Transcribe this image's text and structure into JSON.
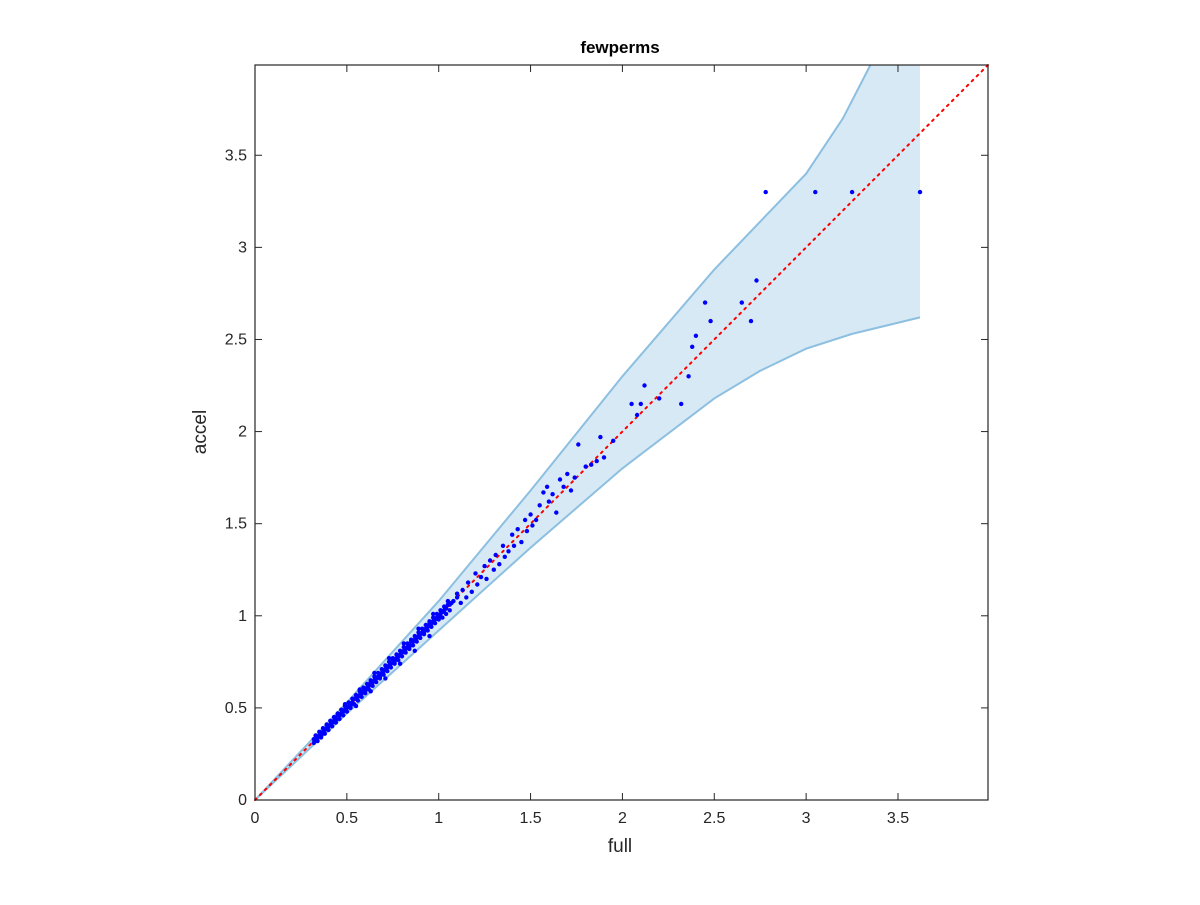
{
  "chart_data": {
    "type": "scatter",
    "title": "fewperms",
    "xlabel": "full",
    "ylabel": "accel",
    "xlim": [
      0,
      3.99
    ],
    "ylim": [
      0,
      3.99
    ],
    "grid": false,
    "legend": "none",
    "x_ticks": [
      0,
      0.5,
      1,
      1.5,
      2,
      2.5,
      3,
      3.5
    ],
    "y_ticks": [
      0,
      0.5,
      1,
      1.5,
      2,
      2.5,
      3,
      3.5
    ],
    "x_tick_labels": [
      "0",
      "0.5",
      "1",
      "1.5",
      "2",
      "2.5",
      "3",
      "3.5"
    ],
    "y_tick_labels": [
      "0",
      "0.5",
      "1",
      "1.5",
      "2",
      "2.5",
      "3",
      "3.5"
    ],
    "colors": {
      "points": "#0000ff",
      "diagonal": "#ff0000",
      "band_fill": "#d6e9f5",
      "band_edge": "#8cbfe0",
      "axes": "#262626"
    },
    "reference_line": {
      "style": "dotted",
      "from": [
        0,
        0
      ],
      "to": [
        3.99,
        3.99
      ]
    },
    "band": {
      "upper": [
        [
          0,
          0
        ],
        [
          0.5,
          0.53
        ],
        [
          1,
          1.08
        ],
        [
          1.5,
          1.68
        ],
        [
          2,
          2.3
        ],
        [
          2.5,
          2.88
        ],
        [
          3,
          3.4
        ],
        [
          3.2,
          3.7
        ],
        [
          3.35,
          3.99
        ],
        [
          3.62,
          3.99
        ]
      ],
      "lower": [
        [
          0,
          0
        ],
        [
          0.5,
          0.47
        ],
        [
          1,
          0.92
        ],
        [
          1.5,
          1.37
        ],
        [
          2,
          1.8
        ],
        [
          2.5,
          2.18
        ],
        [
          2.75,
          2.33
        ],
        [
          3,
          2.45
        ],
        [
          3.25,
          2.53
        ],
        [
          3.62,
          2.62
        ]
      ]
    },
    "series": [
      {
        "points": [
          [
            0.32,
            0.31
          ],
          [
            0.33,
            0.33
          ],
          [
            0.34,
            0.34
          ],
          [
            0.35,
            0.35
          ],
          [
            0.36,
            0.36
          ],
          [
            0.37,
            0.37
          ],
          [
            0.38,
            0.38
          ],
          [
            0.39,
            0.39
          ],
          [
            0.4,
            0.4
          ],
          [
            0.41,
            0.41
          ],
          [
            0.42,
            0.42
          ],
          [
            0.43,
            0.43
          ],
          [
            0.44,
            0.44
          ],
          [
            0.45,
            0.46
          ],
          [
            0.46,
            0.46
          ],
          [
            0.47,
            0.47
          ],
          [
            0.48,
            0.48
          ],
          [
            0.49,
            0.49
          ],
          [
            0.5,
            0.5
          ],
          [
            0.51,
            0.51
          ],
          [
            0.52,
            0.52
          ],
          [
            0.53,
            0.53
          ],
          [
            0.54,
            0.55
          ],
          [
            0.55,
            0.55
          ],
          [
            0.56,
            0.56
          ],
          [
            0.57,
            0.57
          ],
          [
            0.58,
            0.58
          ],
          [
            0.59,
            0.59
          ],
          [
            0.6,
            0.6
          ],
          [
            0.61,
            0.61
          ],
          [
            0.62,
            0.62
          ],
          [
            0.63,
            0.64
          ],
          [
            0.64,
            0.64
          ],
          [
            0.65,
            0.65
          ],
          [
            0.66,
            0.66
          ],
          [
            0.67,
            0.67
          ],
          [
            0.68,
            0.68
          ],
          [
            0.69,
            0.69
          ],
          [
            0.7,
            0.7
          ],
          [
            0.71,
            0.71
          ],
          [
            0.72,
            0.72
          ],
          [
            0.73,
            0.73
          ],
          [
            0.74,
            0.74
          ],
          [
            0.75,
            0.76
          ],
          [
            0.76,
            0.76
          ],
          [
            0.77,
            0.77
          ],
          [
            0.78,
            0.78
          ],
          [
            0.79,
            0.79
          ],
          [
            0.8,
            0.8
          ],
          [
            0.81,
            0.81
          ],
          [
            0.82,
            0.82
          ],
          [
            0.83,
            0.83
          ],
          [
            0.84,
            0.84
          ],
          [
            0.85,
            0.86
          ],
          [
            0.86,
            0.86
          ],
          [
            0.87,
            0.87
          ],
          [
            0.88,
            0.88
          ],
          [
            0.89,
            0.89
          ],
          [
            0.9,
            0.9
          ],
          [
            0.91,
            0.91
          ],
          [
            0.92,
            0.92
          ],
          [
            0.93,
            0.93
          ],
          [
            0.94,
            0.94
          ],
          [
            0.95,
            0.96
          ],
          [
            0.96,
            0.96
          ],
          [
            0.97,
            0.97
          ],
          [
            0.98,
            0.98
          ],
          [
            0.99,
            0.99
          ],
          [
            1.0,
            1.0
          ],
          [
            1.01,
            1.01
          ],
          [
            1.02,
            1.02
          ],
          [
            1.03,
            1.03
          ],
          [
            1.04,
            1.04
          ],
          [
            1.05,
            1.06
          ],
          [
            1.06,
            1.06
          ],
          [
            1.07,
            1.07
          ],
          [
            1.08,
            1.08
          ],
          [
            1.1,
            1.1
          ],
          [
            0.34,
            0.32
          ],
          [
            0.36,
            0.34
          ],
          [
            0.38,
            0.36
          ],
          [
            0.4,
            0.38
          ],
          [
            0.42,
            0.4
          ],
          [
            0.44,
            0.42
          ],
          [
            0.46,
            0.44
          ],
          [
            0.48,
            0.46
          ],
          [
            0.5,
            0.48
          ],
          [
            0.52,
            0.5
          ],
          [
            0.54,
            0.52
          ],
          [
            0.56,
            0.54
          ],
          [
            0.58,
            0.56
          ],
          [
            0.6,
            0.58
          ],
          [
            0.62,
            0.6
          ],
          [
            0.64,
            0.62
          ],
          [
            0.66,
            0.64
          ],
          [
            0.68,
            0.66
          ],
          [
            0.7,
            0.68
          ],
          [
            0.72,
            0.7
          ],
          [
            0.74,
            0.72
          ],
          [
            0.76,
            0.74
          ],
          [
            0.78,
            0.76
          ],
          [
            0.8,
            0.78
          ],
          [
            0.82,
            0.8
          ],
          [
            0.84,
            0.82
          ],
          [
            0.86,
            0.84
          ],
          [
            0.88,
            0.86
          ],
          [
            0.9,
            0.88
          ],
          [
            0.92,
            0.9
          ],
          [
            0.94,
            0.92
          ],
          [
            0.96,
            0.94
          ],
          [
            0.98,
            0.96
          ],
          [
            1.0,
            0.98
          ],
          [
            1.02,
            0.99
          ],
          [
            1.04,
            1.01
          ],
          [
            1.06,
            1.03
          ],
          [
            0.33,
            0.35
          ],
          [
            0.35,
            0.37
          ],
          [
            0.37,
            0.39
          ],
          [
            0.39,
            0.41
          ],
          [
            0.41,
            0.43
          ],
          [
            0.43,
            0.45
          ],
          [
            0.45,
            0.47
          ],
          [
            0.47,
            0.49
          ],
          [
            0.49,
            0.51
          ],
          [
            0.51,
            0.53
          ],
          [
            0.53,
            0.55
          ],
          [
            0.55,
            0.57
          ],
          [
            0.57,
            0.59
          ],
          [
            0.59,
            0.61
          ],
          [
            0.61,
            0.63
          ],
          [
            0.63,
            0.65
          ],
          [
            0.65,
            0.67
          ],
          [
            0.67,
            0.69
          ],
          [
            0.69,
            0.71
          ],
          [
            0.71,
            0.73
          ],
          [
            0.73,
            0.75
          ],
          [
            0.75,
            0.77
          ],
          [
            0.77,
            0.79
          ],
          [
            0.79,
            0.81
          ],
          [
            0.81,
            0.83
          ],
          [
            0.83,
            0.85
          ],
          [
            0.85,
            0.87
          ],
          [
            0.87,
            0.89
          ],
          [
            0.89,
            0.91
          ],
          [
            0.91,
            0.93
          ],
          [
            0.93,
            0.95
          ],
          [
            0.95,
            0.97
          ],
          [
            0.97,
            0.99
          ],
          [
            0.99,
            1.01
          ],
          [
            1.01,
            1.03
          ],
          [
            1.03,
            1.05
          ],
          [
            1.05,
            1.08
          ],
          [
            0.32,
            0.33
          ],
          [
            0.36,
            0.35
          ],
          [
            0.44,
            0.43
          ],
          [
            0.52,
            0.51
          ],
          [
            0.6,
            0.59
          ],
          [
            0.68,
            0.67
          ],
          [
            0.76,
            0.75
          ],
          [
            0.84,
            0.83
          ],
          [
            0.92,
            0.91
          ],
          [
            1.0,
            0.99
          ],
          [
            0.49,
            0.52
          ],
          [
            0.57,
            0.6
          ],
          [
            0.65,
            0.69
          ],
          [
            0.73,
            0.77
          ],
          [
            0.81,
            0.85
          ],
          [
            0.89,
            0.93
          ],
          [
            0.97,
            1.01
          ],
          [
            0.55,
            0.51
          ],
          [
            0.63,
            0.59
          ],
          [
            0.71,
            0.66
          ],
          [
            0.79,
            0.74
          ],
          [
            0.87,
            0.81
          ],
          [
            0.95,
            0.89
          ],
          [
            1.1,
            1.12
          ],
          [
            1.12,
            1.07
          ],
          [
            1.13,
            1.14
          ],
          [
            1.15,
            1.1
          ],
          [
            1.16,
            1.18
          ],
          [
            1.18,
            1.13
          ],
          [
            1.2,
            1.23
          ],
          [
            1.21,
            1.17
          ],
          [
            1.23,
            1.21
          ],
          [
            1.25,
            1.27
          ],
          [
            1.26,
            1.2
          ],
          [
            1.28,
            1.3
          ],
          [
            1.3,
            1.25
          ],
          [
            1.31,
            1.33
          ],
          [
            1.33,
            1.28
          ],
          [
            1.35,
            1.38
          ],
          [
            1.36,
            1.32
          ],
          [
            1.38,
            1.35
          ],
          [
            1.4,
            1.44
          ],
          [
            1.41,
            1.38
          ],
          [
            1.43,
            1.47
          ],
          [
            1.45,
            1.4
          ],
          [
            1.47,
            1.52
          ],
          [
            1.48,
            1.46
          ],
          [
            1.5,
            1.55
          ],
          [
            1.51,
            1.49
          ],
          [
            1.53,
            1.52
          ],
          [
            1.55,
            1.6
          ],
          [
            1.57,
            1.67
          ],
          [
            1.59,
            1.7
          ],
          [
            1.6,
            1.62
          ],
          [
            1.62,
            1.66
          ],
          [
            1.64,
            1.56
          ],
          [
            1.66,
            1.74
          ],
          [
            1.68,
            1.7
          ],
          [
            1.7,
            1.77
          ],
          [
            1.72,
            1.68
          ],
          [
            1.74,
            1.75
          ],
          [
            1.76,
            1.93
          ],
          [
            1.8,
            1.81
          ],
          [
            1.83,
            1.82
          ],
          [
            1.86,
            1.84
          ],
          [
            1.88,
            1.97
          ],
          [
            1.9,
            1.86
          ],
          [
            1.95,
            1.95
          ],
          [
            2.05,
            2.15
          ],
          [
            2.08,
            2.09
          ],
          [
            2.1,
            2.15
          ],
          [
            2.12,
            2.25
          ],
          [
            2.2,
            2.18
          ],
          [
            2.32,
            2.15
          ],
          [
            2.36,
            2.3
          ],
          [
            2.38,
            2.46
          ],
          [
            2.4,
            2.52
          ],
          [
            2.45,
            2.7
          ],
          [
            2.48,
            2.6
          ],
          [
            2.65,
            2.7
          ],
          [
            2.7,
            2.6
          ],
          [
            2.73,
            2.82
          ],
          [
            2.78,
            3.3
          ],
          [
            3.05,
            3.3
          ],
          [
            3.25,
            3.3
          ],
          [
            3.62,
            3.3
          ]
        ]
      }
    ]
  }
}
